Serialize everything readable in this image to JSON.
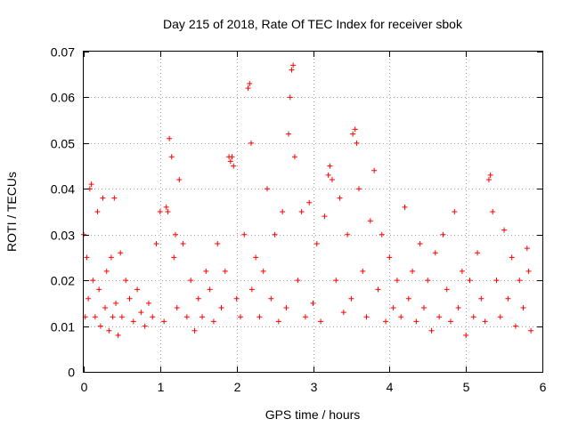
{
  "chart_data": {
    "type": "scatter",
    "title": "Day 215 of 2018, Rate Of TEC Index for receiver sbok",
    "xlabel": "GPS time / hours",
    "ylabel": "ROTI / TECUs",
    "xlim": [
      0,
      6
    ],
    "ylim": [
      0,
      0.07
    ],
    "x_ticks": [
      0,
      1,
      2,
      3,
      4,
      5,
      6
    ],
    "x_tick_labels": [
      "0",
      "1",
      "2",
      "3",
      "4",
      "5",
      "6"
    ],
    "y_ticks": [
      0,
      0.01,
      0.02,
      0.03,
      0.04,
      0.05,
      0.06,
      0.07
    ],
    "y_tick_labels": [
      "0",
      "0.01",
      "0.02",
      "0.03",
      "0.04",
      "0.05",
      "0.06",
      "0.07"
    ],
    "grid": true,
    "marker": "plus",
    "color": "#ff0000",
    "series": [
      {
        "name": "ROTI",
        "x": [
          0.0,
          0.02,
          0.04,
          0.06,
          0.08,
          0.1,
          0.12,
          0.15,
          0.18,
          0.2,
          0.22,
          0.25,
          0.28,
          0.3,
          0.33,
          0.36,
          0.38,
          0.4,
          0.42,
          0.45,
          0.48,
          0.5,
          0.55,
          0.6,
          0.65,
          0.7,
          0.75,
          0.8,
          0.85,
          0.9,
          0.95,
          1.0,
          1.05,
          1.08,
          1.1,
          1.12,
          1.15,
          1.18,
          1.2,
          1.22,
          1.25,
          1.3,
          1.35,
          1.4,
          1.45,
          1.5,
          1.55,
          1.6,
          1.65,
          1.7,
          1.75,
          1.8,
          1.85,
          1.9,
          1.92,
          1.94,
          1.96,
          2.0,
          2.05,
          2.1,
          2.15,
          2.17,
          2.19,
          2.2,
          2.25,
          2.3,
          2.35,
          2.4,
          2.45,
          2.5,
          2.55,
          2.6,
          2.65,
          2.68,
          2.7,
          2.72,
          2.74,
          2.76,
          2.8,
          2.85,
          2.9,
          2.95,
          3.0,
          3.05,
          3.1,
          3.15,
          3.2,
          3.22,
          3.25,
          3.3,
          3.35,
          3.4,
          3.45,
          3.5,
          3.52,
          3.55,
          3.57,
          3.6,
          3.65,
          3.7,
          3.75,
          3.8,
          3.85,
          3.9,
          3.95,
          4.0,
          4.05,
          4.1,
          4.15,
          4.2,
          4.25,
          4.3,
          4.35,
          4.4,
          4.45,
          4.5,
          4.55,
          4.6,
          4.65,
          4.7,
          4.75,
          4.8,
          4.85,
          4.9,
          4.95,
          5.0,
          5.05,
          5.1,
          5.15,
          5.2,
          5.25,
          5.3,
          5.32,
          5.35,
          5.4,
          5.45,
          5.5,
          5.55,
          5.6,
          5.65,
          5.7,
          5.75,
          5.8,
          5.82,
          5.85
        ],
        "y": [
          0.03,
          0.012,
          0.025,
          0.016,
          0.04,
          0.041,
          0.02,
          0.012,
          0.035,
          0.018,
          0.01,
          0.038,
          0.014,
          0.022,
          0.009,
          0.025,
          0.012,
          0.038,
          0.015,
          0.008,
          0.026,
          0.012,
          0.02,
          0.016,
          0.011,
          0.018,
          0.013,
          0.01,
          0.015,
          0.012,
          0.028,
          0.035,
          0.011,
          0.036,
          0.035,
          0.051,
          0.047,
          0.025,
          0.03,
          0.014,
          0.042,
          0.028,
          0.012,
          0.02,
          0.009,
          0.016,
          0.012,
          0.022,
          0.018,
          0.011,
          0.028,
          0.014,
          0.022,
          0.047,
          0.046,
          0.047,
          0.045,
          0.016,
          0.012,
          0.03,
          0.062,
          0.063,
          0.05,
          0.018,
          0.025,
          0.012,
          0.022,
          0.04,
          0.016,
          0.03,
          0.011,
          0.035,
          0.014,
          0.052,
          0.06,
          0.066,
          0.067,
          0.047,
          0.02,
          0.035,
          0.012,
          0.037,
          0.015,
          0.028,
          0.011,
          0.034,
          0.043,
          0.045,
          0.042,
          0.02,
          0.038,
          0.013,
          0.03,
          0.016,
          0.052,
          0.053,
          0.05,
          0.04,
          0.022,
          0.012,
          0.033,
          0.044,
          0.018,
          0.03,
          0.011,
          0.025,
          0.014,
          0.02,
          0.012,
          0.036,
          0.016,
          0.022,
          0.011,
          0.028,
          0.014,
          0.02,
          0.009,
          0.026,
          0.012,
          0.03,
          0.018,
          0.011,
          0.035,
          0.014,
          0.022,
          0.008,
          0.02,
          0.012,
          0.026,
          0.016,
          0.011,
          0.042,
          0.043,
          0.035,
          0.02,
          0.012,
          0.031,
          0.016,
          0.025,
          0.01,
          0.02,
          0.014,
          0.027,
          0.022,
          0.009
        ]
      }
    ]
  }
}
